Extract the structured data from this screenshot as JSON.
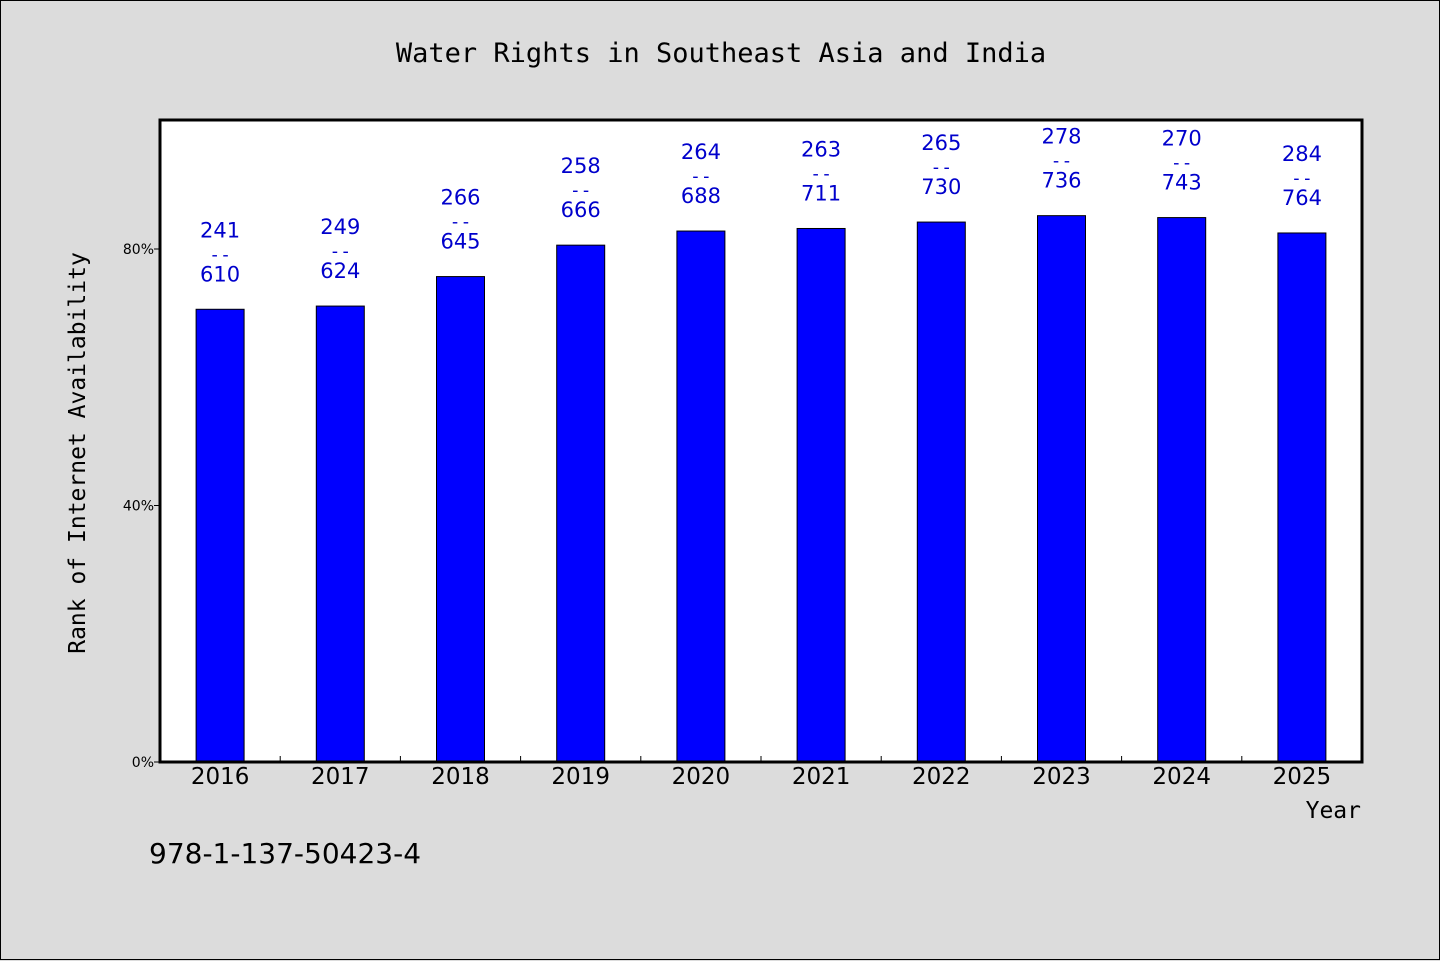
{
  "chart_data": {
    "type": "bar",
    "title": "Water Rights in Southeast Asia and India",
    "xlabel": "Year",
    "ylabel": "Rank of Internet Availability",
    "categories": [
      "2016",
      "2017",
      "2018",
      "2019",
      "2020",
      "2021",
      "2022",
      "2023",
      "2024",
      "2025"
    ],
    "values": [
      70.6,
      71.1,
      75.7,
      80.6,
      82.8,
      83.2,
      84.2,
      85.2,
      84.9,
      82.5
    ],
    "labels_top": [
      "241",
      "249",
      "266",
      "258",
      "264",
      "263",
      "265",
      "278",
      "270",
      "284"
    ],
    "labels_bottom": [
      "610",
      "624",
      "645",
      "666",
      "688",
      "711",
      "730",
      "736",
      "743",
      "764"
    ],
    "label_separator": "--",
    "yticks": [
      0,
      40,
      80
    ],
    "ytick_labels": [
      "0%",
      "40%",
      "80%"
    ],
    "ylim": [
      0,
      100
    ],
    "grid": false,
    "legend": "none",
    "bar_color": "#0000ff",
    "label_color": "#0000cc"
  },
  "footer": {
    "isbn": "978-1-137-50423-4"
  }
}
